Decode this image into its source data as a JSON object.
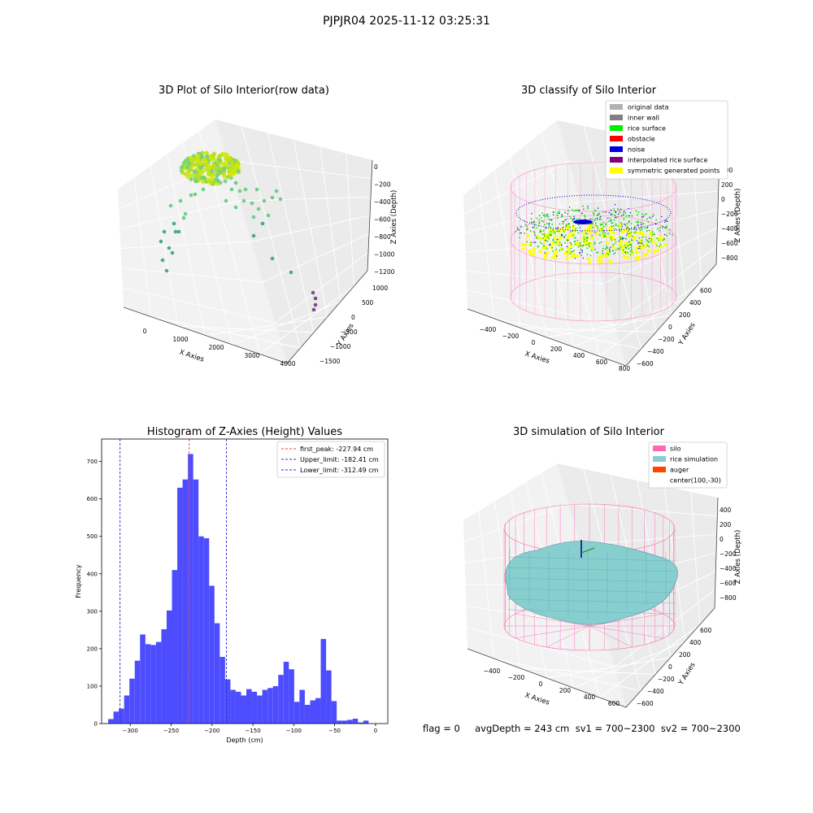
{
  "suptitle": "PJPJR04 2025-11-12 03:25:31",
  "status_text": "flag = 0     avgDepth = 243 cm  sv1 = 700~2300  sv2 = 700~2300",
  "colors": {
    "hist_bar": "#4d4dff",
    "peak_line": "#ff3b3b",
    "limit_line": "#2b2bd9",
    "silo_wire": "#ff69b4",
    "rice_sim": "#87cecf",
    "rice_surface": "#00ee00",
    "noise": "#0000dd",
    "symmetric": "#ffff00",
    "raw_points": "#c8e000"
  },
  "chart_data": [
    {
      "type": "scatter3d",
      "title": "3D Plot of Silo Interior(row data)",
      "xlabel": "X Axies",
      "ylabel": "Y Axies",
      "zlabel": "Z Axies (Depth)",
      "xticks": [
        "0",
        "1000",
        "2000",
        "3000",
        "4000"
      ],
      "yticks": [
        "1000",
        "500",
        "0",
        "−500",
        "−1000",
        "−1500"
      ],
      "zticks": [
        "0",
        "−200",
        "−400",
        "−600",
        "−800",
        "−1000",
        "−1200"
      ]
    },
    {
      "type": "scatter3d",
      "title": "3D classify of Silo Interior",
      "xlabel": "X Axies",
      "ylabel": "Y Axies",
      "zlabel": "Z Axies (Depth)",
      "xticks": [
        "−400",
        "−200",
        "0",
        "200",
        "400",
        "600",
        "800"
      ],
      "yticks": [
        "600",
        "400",
        "200",
        "0",
        "−200",
        "−400",
        "−600"
      ],
      "zticks": [
        "400",
        "200",
        "0",
        "−200",
        "−400",
        "−600",
        "−800"
      ],
      "legend": [
        {
          "label": "original data",
          "color": "#b0b0b0"
        },
        {
          "label": "inner wall",
          "color": "#808080"
        },
        {
          "label": "rice surface",
          "color": "#00ee00"
        },
        {
          "label": "obstacle",
          "color": "#ff0000"
        },
        {
          "label": "noise",
          "color": "#0000dd"
        },
        {
          "label": "interpolated rice surface",
          "color": "#800080"
        },
        {
          "label": "symmetric generated points",
          "color": "#ffff00"
        }
      ]
    },
    {
      "type": "bar",
      "title": "Histogram of Z-Axies (Height) Values",
      "xlabel": "Depth (cm)",
      "ylabel": "Frequency",
      "xlim": [
        -335,
        15
      ],
      "ylim": [
        0,
        760
      ],
      "xticks": [
        -300,
        -250,
        -200,
        -150,
        -100,
        -50,
        0
      ],
      "yticks": [
        0,
        100,
        200,
        300,
        400,
        500,
        600,
        700
      ],
      "bin_start": -327,
      "bin_width": 6.5,
      "values": [
        12,
        32,
        40,
        75,
        120,
        168,
        238,
        212,
        210,
        218,
        252,
        302,
        410,
        630,
        652,
        720,
        652,
        500,
        495,
        368,
        268,
        178,
        118,
        90,
        85,
        75,
        92,
        85,
        75,
        90,
        95,
        100,
        130,
        165,
        145,
        58,
        90,
        50,
        62,
        68,
        226,
        142,
        60,
        8,
        8,
        10,
        13,
        3,
        8
      ],
      "vlines": [
        {
          "label": "first_peak: -227.94 cm",
          "x": -227.94,
          "color": "#ff3b3b"
        },
        {
          "label": "Upper_limit: -182.41 cm",
          "x": -182.41,
          "color": "#2b2bd9"
        },
        {
          "label": "Lower_limit: -312.49 cm",
          "x": -312.49,
          "color": "#2b2bd9"
        }
      ]
    },
    {
      "type": "surface3d",
      "title": "3D simulation of Silo Interior",
      "xlabel": "X Axies",
      "ylabel": "Y Axies",
      "zlabel": "Z Axies (Depth)",
      "xticks": [
        "−400",
        "−200",
        "0",
        "200",
        "400",
        "600"
      ],
      "yticks": [
        "600",
        "400",
        "200",
        "0",
        "−200",
        "−400",
        "−600"
      ],
      "zticks": [
        "400",
        "200",
        "0",
        "−200",
        "−400",
        "−600",
        "−800"
      ],
      "legend": [
        {
          "label": "silo",
          "color": "#ff69b4"
        },
        {
          "label": "rice simulation",
          "color": "#87cecf"
        },
        {
          "label": "auger",
          "color": "#ff4500"
        },
        {
          "label": "center(100,-30)",
          "color": ""
        }
      ]
    }
  ]
}
